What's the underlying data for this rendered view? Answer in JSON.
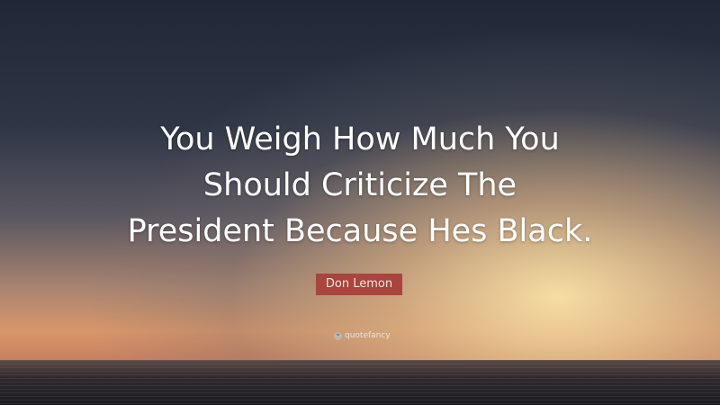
{
  "quote": {
    "lines": [
      "You Weigh How Much You",
      "Should Criticize The",
      "President Because Hes Black."
    ]
  },
  "author": "Don Lemon",
  "brand": {
    "name": "quotefancy",
    "icon": "quote-icon"
  },
  "colors": {
    "author_badge": "#a9443f",
    "text": "#ffffff"
  }
}
